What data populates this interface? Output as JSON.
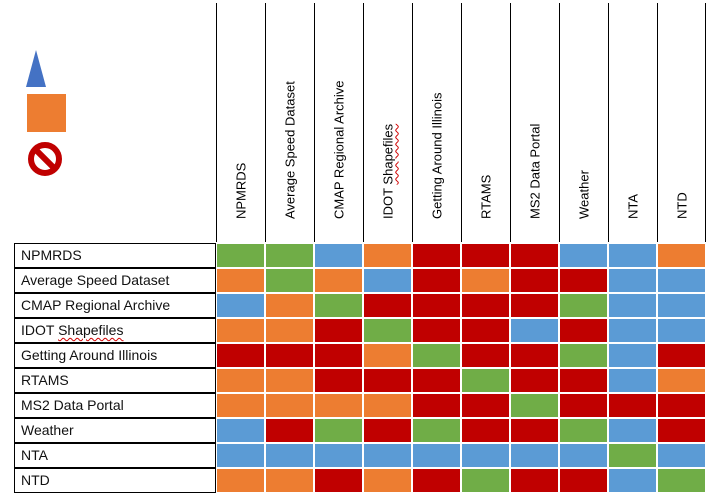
{
  "legend": [
    {
      "shape": "triangle",
      "color": "#4472c4"
    },
    {
      "shape": "square",
      "color": "#ed7d31"
    },
    {
      "shape": "no-symbol",
      "color": "#c00000"
    }
  ],
  "palette": {
    "G": "#70ad47",
    "B": "#5b9bd5",
    "O": "#ed7d31",
    "R": "#c00000"
  },
  "columns": [
    "NPMRDS",
    "Average Speed Dataset",
    "CMAP Regional Archive",
    "IDOT Shapefiles",
    "Getting Around Illinois",
    "RTAMS",
    "MS2 Data Portal",
    "Weather",
    "NTA",
    "NTD"
  ],
  "rows": [
    {
      "label": "NPMRDS",
      "cells": [
        "G",
        "G",
        "B",
        "O",
        "R",
        "R",
        "R",
        "B",
        "B",
        "O"
      ]
    },
    {
      "label": "Average Speed Dataset",
      "cells": [
        "O",
        "G",
        "O",
        "B",
        "R",
        "O",
        "R",
        "R",
        "B",
        "B"
      ]
    },
    {
      "label": "CMAP Regional Archive",
      "cells": [
        "B",
        "O",
        "G",
        "R",
        "R",
        "R",
        "R",
        "G",
        "B",
        "B"
      ]
    },
    {
      "label": "IDOT Shapefiles",
      "cells": [
        "O",
        "O",
        "R",
        "G",
        "R",
        "R",
        "B",
        "R",
        "B",
        "B"
      ]
    },
    {
      "label": "Getting Around Illinois",
      "cells": [
        "R",
        "R",
        "R",
        "O",
        "G",
        "R",
        "R",
        "G",
        "B",
        "R"
      ]
    },
    {
      "label": "RTAMS",
      "cells": [
        "O",
        "O",
        "R",
        "R",
        "R",
        "G",
        "R",
        "R",
        "B",
        "O"
      ]
    },
    {
      "label": "MS2 Data Portal",
      "cells": [
        "O",
        "O",
        "O",
        "O",
        "R",
        "R",
        "G",
        "R",
        "R",
        "R"
      ]
    },
    {
      "label": "Weather",
      "cells": [
        "B",
        "R",
        "G",
        "R",
        "G",
        "R",
        "R",
        "G",
        "B",
        "R"
      ]
    },
    {
      "label": "NTA",
      "cells": [
        "B",
        "B",
        "B",
        "B",
        "B",
        "B",
        "B",
        "B",
        "G",
        "B"
      ]
    },
    {
      "label": "NTD",
      "cells": [
        "O",
        "O",
        "R",
        "O",
        "R",
        "G",
        "R",
        "R",
        "B",
        "G"
      ]
    }
  ]
}
